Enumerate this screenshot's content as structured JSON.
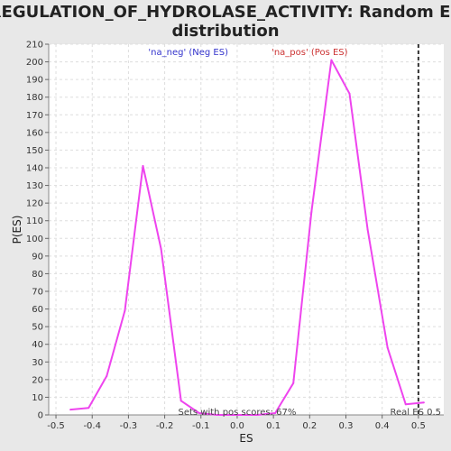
{
  "colors": {
    "background": "#e8e8e8",
    "plot_bg": "#ffffff",
    "curve": "#ee44ee",
    "neg_label": "#3333cc",
    "pos_label": "#cc3333",
    "real_es_line": "#333333",
    "grid": "#dddddd"
  },
  "chart_data": {
    "type": "line",
    "title_line1": "REGULATION_OF_HYDROLASE_ACTIVITY: Random ES",
    "title_line2": "distribution",
    "xlabel": "ES",
    "ylabel": "P(ES)",
    "xlim": [
      -0.52,
      0.57
    ],
    "ylim": [
      0,
      210
    ],
    "xticks": [
      -0.5,
      -0.4,
      -0.3,
      -0.2,
      -0.1,
      0.0,
      0.1,
      0.2,
      0.3,
      0.4,
      0.5
    ],
    "xtick_labels": [
      "-0.5",
      "-0.4",
      "-0.3",
      "-0.2",
      "-0.1",
      "0.0",
      "0.1",
      "0.2",
      "0.3",
      "0.4",
      "0.5"
    ],
    "yticks": [
      0,
      10,
      20,
      30,
      40,
      50,
      60,
      70,
      80,
      90,
      100,
      110,
      120,
      130,
      140,
      150,
      160,
      170,
      180,
      190,
      200,
      210
    ],
    "grid": true,
    "series": [
      {
        "x": [
          -0.46,
          -0.41,
          -0.36,
          -0.31,
          -0.26,
          -0.21,
          -0.155,
          -0.105,
          -0.055,
          0.0,
          0.055,
          0.105,
          0.155,
          0.205,
          0.26,
          0.31,
          0.36,
          0.415,
          0.465,
          0.515
        ],
        "y": [
          3,
          4,
          22,
          59,
          141,
          94,
          8,
          1,
          0,
          0,
          0,
          1,
          18,
          115,
          201,
          182,
          105,
          38,
          6,
          7
        ]
      }
    ],
    "legend_neg": "'na_neg' (Neg ES)",
    "legend_pos": "'na_pos' (Pos ES)",
    "real_es_value": 0.5,
    "real_es_label": "Real ES 0.5",
    "footer_note": "Sets with pos scores: 67%"
  }
}
